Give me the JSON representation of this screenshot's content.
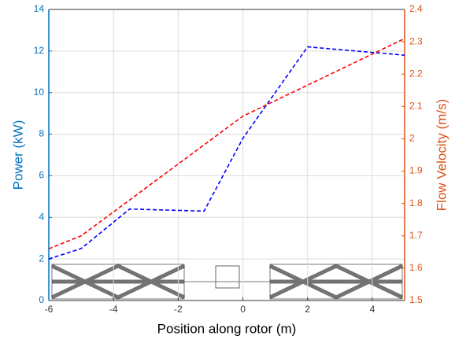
{
  "chart_data": {
    "type": "line",
    "xlabel": "Position along rotor (m)",
    "ylabel": "Power (kW)",
    "y2label": "Flow Velocity (m/s)",
    "xlim": [
      -6,
      5
    ],
    "xticks": [
      -6,
      -4,
      -2,
      0,
      2,
      4
    ],
    "ylim": [
      0,
      14
    ],
    "yticks": [
      0,
      2,
      4,
      6,
      8,
      10,
      12,
      14
    ],
    "y2lim": [
      1.5,
      2.4
    ],
    "y2ticks": [
      1.5,
      1.6,
      1.7,
      1.8,
      1.9,
      2,
      2.1,
      2.2,
      2.3,
      2.4
    ],
    "grid": true,
    "ycolor": "#0072bd",
    "y2color": "#d95319",
    "series": [
      {
        "color": "#0000ff",
        "x": [
          -6,
          -5,
          -3.5,
          -1.2,
          0,
          2,
          5
        ],
        "values": [
          2.0,
          2.5,
          4.4,
          4.3,
          7.8,
          12.2,
          11.8
        ]
      },
      {
        "color": "#ff0000",
        "axis": "y2",
        "x": [
          -6,
          -5,
          0,
          5
        ],
        "values": [
          1.66,
          1.7,
          2.07,
          2.31
        ]
      }
    ]
  }
}
